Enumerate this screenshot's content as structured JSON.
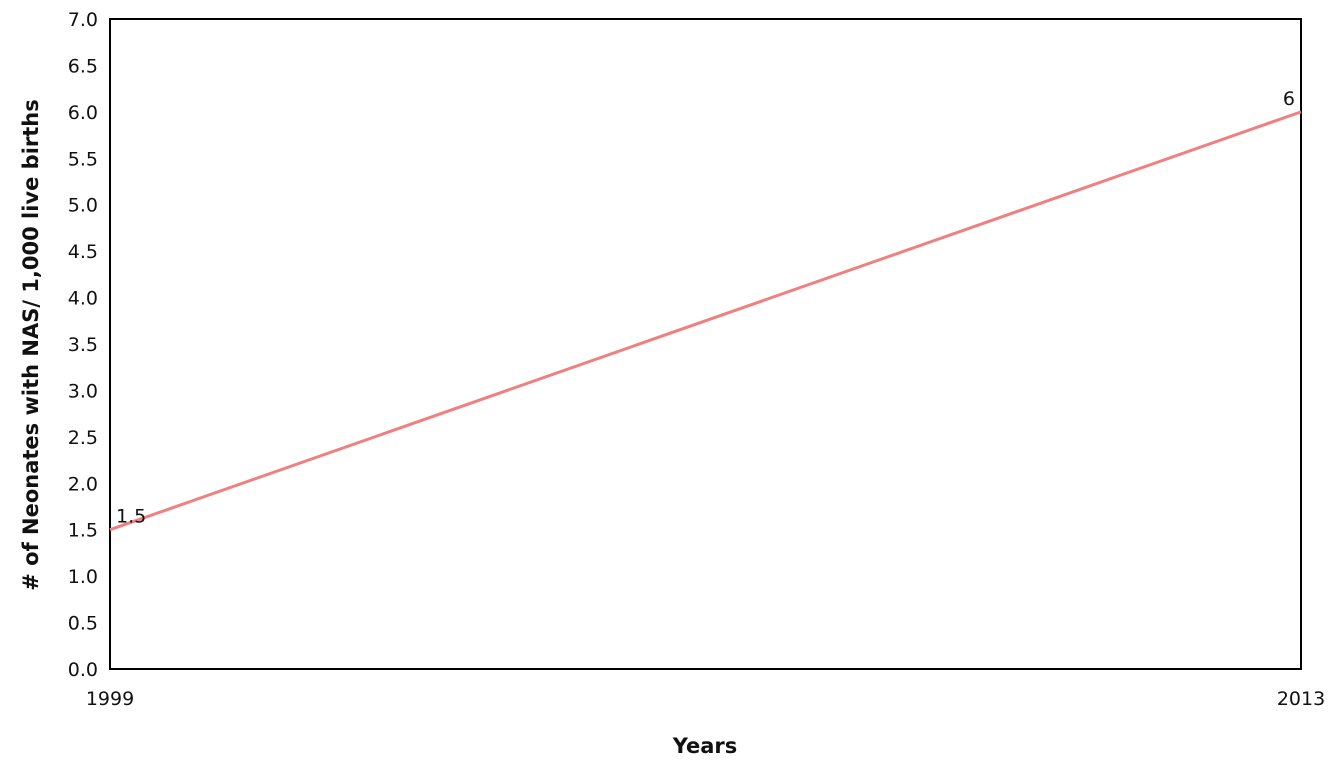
{
  "chart_data": {
    "type": "line",
    "title": "",
    "xlabel": "Years",
    "ylabel": "# of Neonates with NAS/ 1,000 live births",
    "x": [
      "1999",
      "2013"
    ],
    "ylim": [
      0,
      7.0
    ],
    "yticks": [
      "0.0",
      "0.5",
      "1.0",
      "1.5",
      "2.0",
      "2.5",
      "3.0",
      "3.5",
      "4.0",
      "4.5",
      "5.0",
      "5.5",
      "6.0",
      "6.5",
      "7.0"
    ],
    "series": [
      {
        "values": [
          1.5,
          6
        ],
        "data_labels": [
          "1.5",
          "6"
        ],
        "color": "#f08080"
      }
    ],
    "grid": false,
    "legend": "none"
  }
}
